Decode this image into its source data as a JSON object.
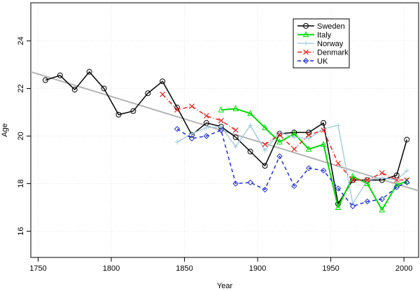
{
  "chart_data": {
    "type": "line",
    "title": "",
    "xlabel": "Year",
    "ylabel": "Age",
    "xlim": [
      1745,
      2010
    ],
    "ylim": [
      14.9,
      25.6
    ],
    "xticks": [
      1750,
      1800,
      1850,
      1900,
      1950,
      2000
    ],
    "yticks": [
      16,
      18,
      20,
      22,
      24
    ],
    "grid": true,
    "legend_position": "top-right",
    "trend_line": {
      "color": "#b3b3b3",
      "x": [
        1745,
        2010
      ],
      "y": [
        22.7,
        17.7
      ]
    },
    "series": [
      {
        "name": "Sweden",
        "color": "#000000",
        "marker": "circle",
        "dash": "solid",
        "width": 1.5,
        "x": [
          1755,
          1765,
          1775,
          1785,
          1795,
          1805,
          1815,
          1825,
          1835,
          1845,
          1855,
          1865,
          1875,
          1885,
          1895,
          1905,
          1915,
          1925,
          1935,
          1945,
          1955,
          1965,
          1975,
          1985,
          1995,
          2002
        ],
        "y": [
          22.35,
          22.55,
          21.95,
          22.7,
          22.0,
          20.9,
          21.05,
          21.8,
          22.3,
          21.2,
          20.05,
          20.55,
          20.4,
          19.95,
          19.35,
          18.75,
          20.1,
          20.15,
          20.15,
          20.55,
          17.15,
          18.15,
          18.15,
          18.15,
          18.35,
          19.85
        ]
      },
      {
        "name": "Italy",
        "color": "#00dd00",
        "marker": "triangle",
        "dash": "solid",
        "width": 2,
        "x": [
          1875,
          1885,
          1895,
          1905,
          1915,
          1925,
          1935,
          1945,
          1955,
          1965,
          1975,
          1985,
          1995,
          2002
        ],
        "y": [
          21.1,
          21.15,
          20.95,
          20.35,
          19.75,
          20.1,
          19.45,
          19.65,
          17.0,
          18.3,
          18.0,
          16.9,
          17.95,
          18.1
        ]
      },
      {
        "name": "Norway",
        "color": "#a8cde0",
        "marker": "plus",
        "dash": "solid",
        "width": 1.5,
        "x": [
          1845,
          1855,
          1865,
          1875,
          1885,
          1895,
          1905,
          1915,
          1925,
          1935,
          1945,
          1955,
          1965,
          1975,
          1985,
          1995,
          2002
        ],
        "y": [
          19.75,
          20.1,
          20.35,
          20.4,
          19.55,
          20.45,
          19.4,
          20.15,
          19.95,
          19.9,
          20.3,
          20.45,
          17.15,
          18.15,
          18.25,
          18.15,
          18.55
        ]
      },
      {
        "name": "Denmark",
        "color": "#e8261e",
        "marker": "cross",
        "dash": "dashdot",
        "width": 1.5,
        "x": [
          1835,
          1845,
          1855,
          1865,
          1875,
          1885,
          1895,
          1905,
          1915,
          1925,
          1935,
          1945,
          1955,
          1965,
          1975,
          1985,
          1995,
          2002
        ],
        "y": [
          21.75,
          21.1,
          21.25,
          20.85,
          20.65,
          20.25,
          null,
          19.65,
          20.05,
          19.45,
          20.05,
          20.25,
          18.85,
          18.15,
          18.15,
          18.45,
          18.15,
          18.15
        ]
      },
      {
        "name": "UK",
        "color": "#1f2fd6",
        "marker": "diamond",
        "dash": "dash",
        "width": 1.5,
        "x": [
          1845,
          1855,
          1865,
          1875,
          1885,
          1895,
          1905,
          1915,
          1925,
          1935,
          1945,
          1955,
          1965,
          1975,
          1985,
          1995,
          2002
        ],
        "y": [
          20.3,
          19.9,
          20.0,
          20.25,
          18.0,
          18.05,
          17.75,
          19.15,
          17.9,
          18.65,
          18.55,
          17.8,
          17.05,
          17.25,
          17.35,
          17.85,
          18.05
        ]
      }
    ]
  }
}
